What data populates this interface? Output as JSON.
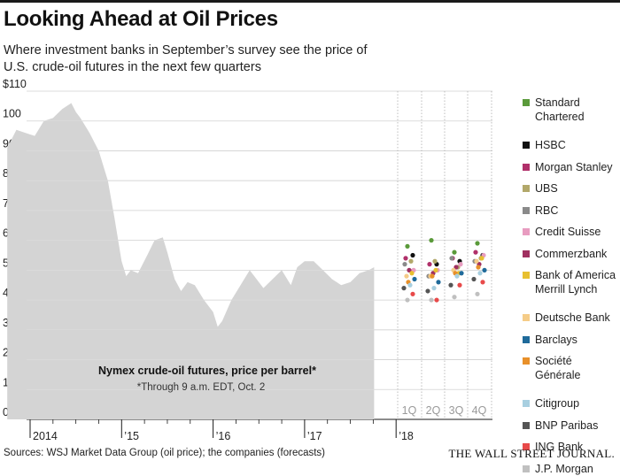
{
  "header": {
    "title": "Looking Ahead at Oil Prices",
    "subtitle": "Where investment banks in September’s survey see the price of U.S. crude-oil futures in the next few quarters"
  },
  "chart_data": {
    "type": "area",
    "ylim": [
      0,
      110
    ],
    "y_ticks": [
      0,
      10,
      20,
      30,
      40,
      50,
      60,
      70,
      80,
      90,
      100,
      110
    ],
    "y_tick_labels": [
      "0",
      "10",
      "20",
      "30",
      "40",
      "50",
      "60",
      "70",
      "80",
      "90",
      "100",
      "$110"
    ],
    "x_ticks": [
      2014,
      2015,
      2016,
      2017,
      2018
    ],
    "x_tick_labels": [
      "2014",
      "’15",
      "’16",
      "’17",
      "’18"
    ],
    "series_label": "Nymex crude-oil futures, price per barrel*",
    "footnote": "*Through 9 a.m. EDT, Oct. 2",
    "colors": {
      "area": "#d4d4d4",
      "grid": "#c8c8c8"
    },
    "history": {
      "x": [
        2013.75,
        2013.85,
        2013.95,
        2014.05,
        2014.15,
        2014.25,
        2014.35,
        2014.45,
        2014.5,
        2014.55,
        2014.65,
        2014.75,
        2014.85,
        2014.92,
        2015.0,
        2015.05,
        2015.1,
        2015.18,
        2015.28,
        2015.36,
        2015.45,
        2015.5,
        2015.58,
        2015.65,
        2015.72,
        2015.8,
        2015.9,
        2016.0,
        2016.05,
        2016.1,
        2016.2,
        2016.3,
        2016.4,
        2016.45,
        2016.55,
        2016.65,
        2016.75,
        2016.85,
        2016.92,
        2017.0,
        2017.1,
        2017.2,
        2017.3,
        2017.4,
        2017.5,
        2017.6,
        2017.7,
        2017.76
      ],
      "values": [
        91,
        97,
        96,
        95,
        100,
        101,
        104,
        106,
        103,
        101,
        96,
        90,
        80,
        68,
        53,
        48,
        50,
        49,
        55,
        60,
        61,
        56,
        47,
        43,
        46,
        45,
        40,
        36,
        31,
        33,
        40,
        45,
        50,
        48,
        44,
        47,
        50,
        45,
        51,
        53,
        53,
        50,
        47,
        45,
        46,
        49,
        50,
        51
      ]
    },
    "forecast_quarters": [
      "1Q",
      "2Q",
      "3Q",
      "4Q"
    ],
    "forecast_values": [
      [
        58,
        60,
        56,
        59
      ],
      [
        55,
        52,
        53,
        55
      ],
      [
        54,
        52,
        54,
        56
      ],
      [
        53,
        53,
        51,
        54
      ],
      [
        52,
        48,
        54,
        53
      ],
      [
        50,
        50,
        52,
        55
      ],
      [
        50,
        49,
        51,
        52
      ],
      [
        49,
        50,
        49,
        54
      ],
      [
        48,
        48,
        50,
        53
      ],
      [
        47,
        46,
        49,
        50
      ],
      [
        46,
        48,
        49,
        51
      ],
      [
        45,
        44,
        48,
        49
      ],
      [
        44,
        43,
        45,
        47
      ],
      [
        42,
        40,
        45,
        46
      ],
      [
        40,
        40,
        41,
        42
      ]
    ]
  },
  "legend": [
    {
      "label": "Standard Chartered",
      "color": "#5a9a3a"
    },
    {
      "label": "HSBC",
      "color": "#111111"
    },
    {
      "label": "Morgan Stanley",
      "color": "#b0306a"
    },
    {
      "label": "UBS",
      "color": "#b2a86a"
    },
    {
      "label": "RBC",
      "color": "#8a8a8a"
    },
    {
      "label": "Credit Suisse",
      "color": "#e89cc0"
    },
    {
      "label": "Commerzbank",
      "color": "#a03060"
    },
    {
      "label": "Bank of America Merrill Lynch",
      "color": "#e8c030"
    },
    {
      "label": "Deutsche Bank",
      "color": "#f5cc88"
    },
    {
      "label": "Barclays",
      "color": "#1f6a9a"
    },
    {
      "label": "Société Générale",
      "color": "#e8902a"
    },
    {
      "label": "Citigroup",
      "color": "#a8cfe0"
    },
    {
      "label": "BNP Paribas",
      "color": "#555555"
    },
    {
      "label": "ING Bank",
      "color": "#e84a4a"
    },
    {
      "label": "J.P. Morgan",
      "color": "#c0c0c0"
    }
  ],
  "footer": {
    "source": "Sources: WSJ Market Data Group (oil price); the companies (forecasts)",
    "brand": "THE WALL STREET JOURNAL."
  }
}
